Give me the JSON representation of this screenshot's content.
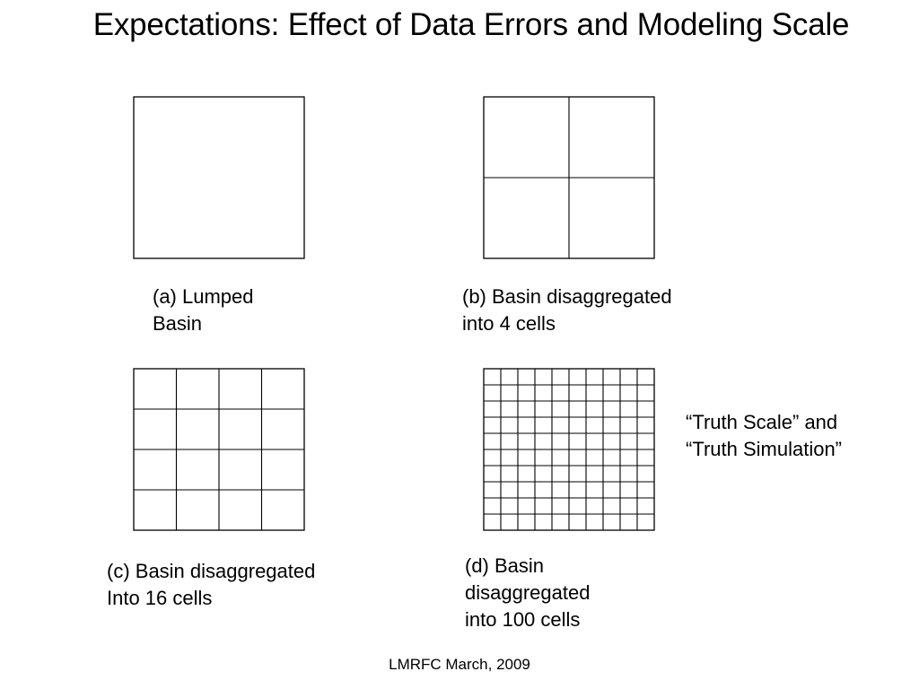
{
  "slide": {
    "title": "Expectations: Effect of Data Errors and Modeling Scale",
    "footer": "LMRFC March, 2009"
  },
  "panels": [
    {
      "id": "a",
      "cells_per_side": 1,
      "caption_lines": [
        "(a) Lumped",
        "Basin"
      ]
    },
    {
      "id": "b",
      "cells_per_side": 2,
      "caption_lines": [
        "(b) Basin  disaggregated",
        "into 4 cells"
      ]
    },
    {
      "id": "c",
      "cells_per_side": 4,
      "caption_lines": [
        "(c) Basin disaggregated",
        "Into 16 cells"
      ]
    },
    {
      "id": "d",
      "cells_per_side": 10,
      "caption_lines": [
        "(d) Basin",
        "disaggregated",
        "into 100 cells"
      ]
    }
  ],
  "annotation": {
    "lines": [
      "“Truth Scale”  and",
      "“Truth Simulation”"
    ]
  }
}
